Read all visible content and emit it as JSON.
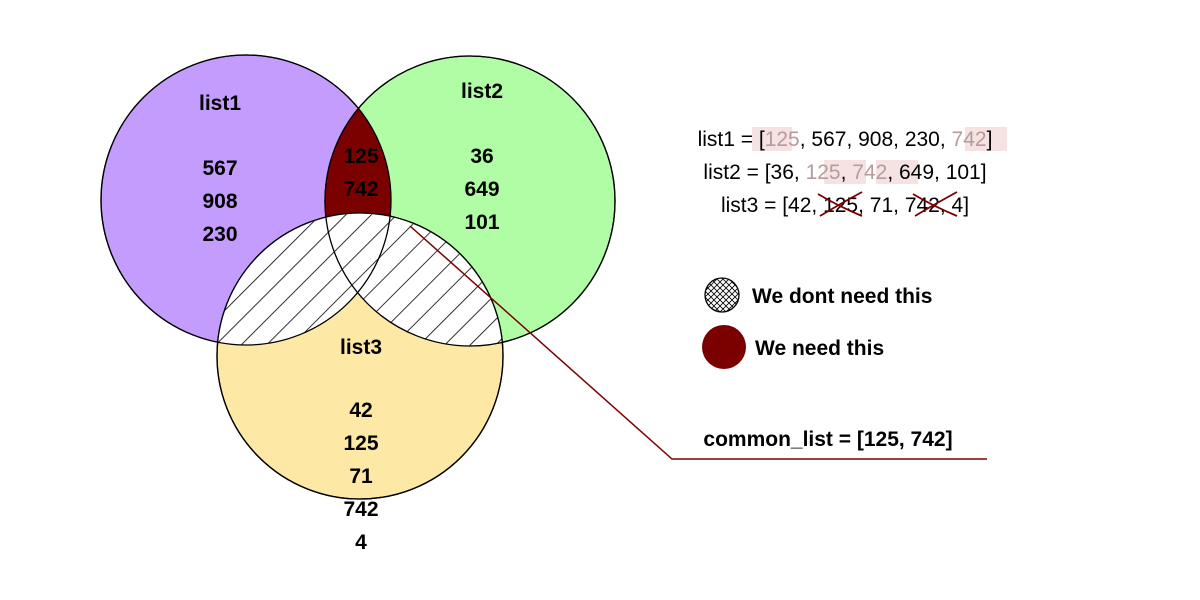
{
  "colors": {
    "list1_fill": "#c39cfd",
    "list2_fill": "#b0fda6",
    "list3_fill": "#fee8a5",
    "needed": "#7b0000",
    "highlight_bg": "#f5e3e3",
    "highlight_text": "#b79a9a",
    "connector": "#7b0000"
  },
  "venn": {
    "list1": {
      "label": "list1",
      "values": [
        "567",
        "908",
        "230"
      ]
    },
    "list2": {
      "label": "list2",
      "values": [
        "36",
        "649",
        "101"
      ]
    },
    "list3": {
      "label": "list3",
      "values": [
        "42",
        "125",
        "71",
        "742",
        "4"
      ]
    },
    "intersection": {
      "values": [
        "125",
        "742"
      ]
    }
  },
  "code_lines": {
    "list1": {
      "prefix": "list1 = [",
      "h1": "125",
      "mid": ", 567, 908, 230, ",
      "h2": "742",
      "suffix": "]"
    },
    "list2": {
      "prefix": "list2 = [36, ",
      "h1": "125",
      "mid": ", ",
      "h2": "742",
      "suffix": ", 649, 101]"
    },
    "list3": {
      "prefix": "list3 = [42, ",
      "s1": "125",
      "mid": ", 71, ",
      "s2": "742",
      "suffix": ", 4]"
    }
  },
  "legend": {
    "hatched_label": "We dont need this",
    "solid_label": "We need this"
  },
  "result": "common_list = [125, 742]"
}
